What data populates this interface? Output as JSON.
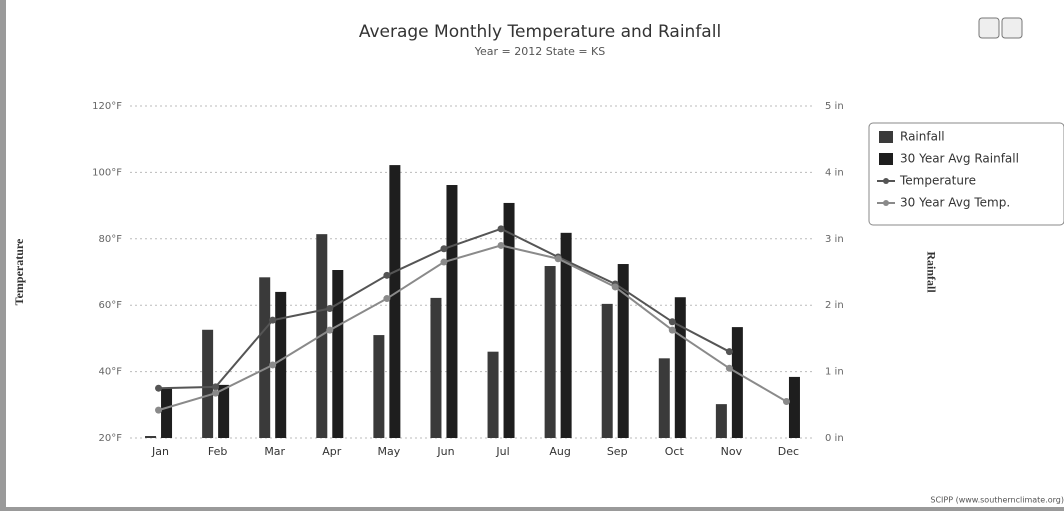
{
  "chart_data": {
    "type": "bar",
    "title": "Average Monthly Temperature and Rainfall",
    "subtitle": "Year = 2012 State = KS",
    "y_label": "Temperature",
    "y2_label": "Rainfall",
    "source": "SCIPP (www.southernclimate.org)",
    "categories": [
      "Jan",
      "Feb",
      "Mar",
      "Apr",
      "May",
      "Jun",
      "Jul",
      "Aug",
      "Sep",
      "Oct",
      "Nov",
      "Dec"
    ],
    "series": [
      {
        "name": "Rainfall",
        "type": "bar",
        "axis": "y2",
        "color": "#3a3a3a",
        "values": [
          0.03,
          1.63,
          2.42,
          3.07,
          1.55,
          2.11,
          1.3,
          2.59,
          2.02,
          1.2,
          0.51,
          null
        ]
      },
      {
        "name": "30 Year Avg Rainfall",
        "type": "bar",
        "axis": "y2",
        "color": "#1e1e1e",
        "values": [
          0.75,
          0.8,
          2.2,
          2.53,
          4.11,
          3.81,
          3.54,
          3.09,
          2.62,
          2.12,
          1.67,
          0.92
        ]
      },
      {
        "name": "Temperature",
        "type": "line",
        "color": "#555555",
        "values": [
          35,
          35.4,
          55.5,
          59,
          69,
          77,
          83,
          74.5,
          66.4,
          55,
          46,
          null
        ]
      },
      {
        "name": "30 Year Avg Temp.",
        "type": "line",
        "color": "#8a8a8a",
        "values": [
          28.4,
          33.5,
          42,
          52.5,
          62,
          73,
          78,
          74,
          65.5,
          52.5,
          41,
          31
        ]
      }
    ],
    "ylim": [
      20,
      120
    ],
    "yticks": [
      {
        "value": 20,
        "label": "20°F"
      },
      {
        "value": 40,
        "label": "40°F"
      },
      {
        "value": 60,
        "label": "60°F"
      },
      {
        "value": 80,
        "label": "80°F"
      },
      {
        "value": 100,
        "label": "100°F"
      },
      {
        "value": 120,
        "label": "120°F"
      }
    ],
    "y2lim": [
      0,
      5
    ],
    "y2ticks": [
      {
        "value": 0,
        "label": "0 in"
      },
      {
        "value": 1,
        "label": "1 in"
      },
      {
        "value": 2,
        "label": "2 in"
      },
      {
        "value": 3,
        "label": "3 in"
      },
      {
        "value": 4,
        "label": "4 in"
      },
      {
        "value": 5,
        "label": "5 in"
      }
    ],
    "grid": true,
    "legend": "right"
  }
}
